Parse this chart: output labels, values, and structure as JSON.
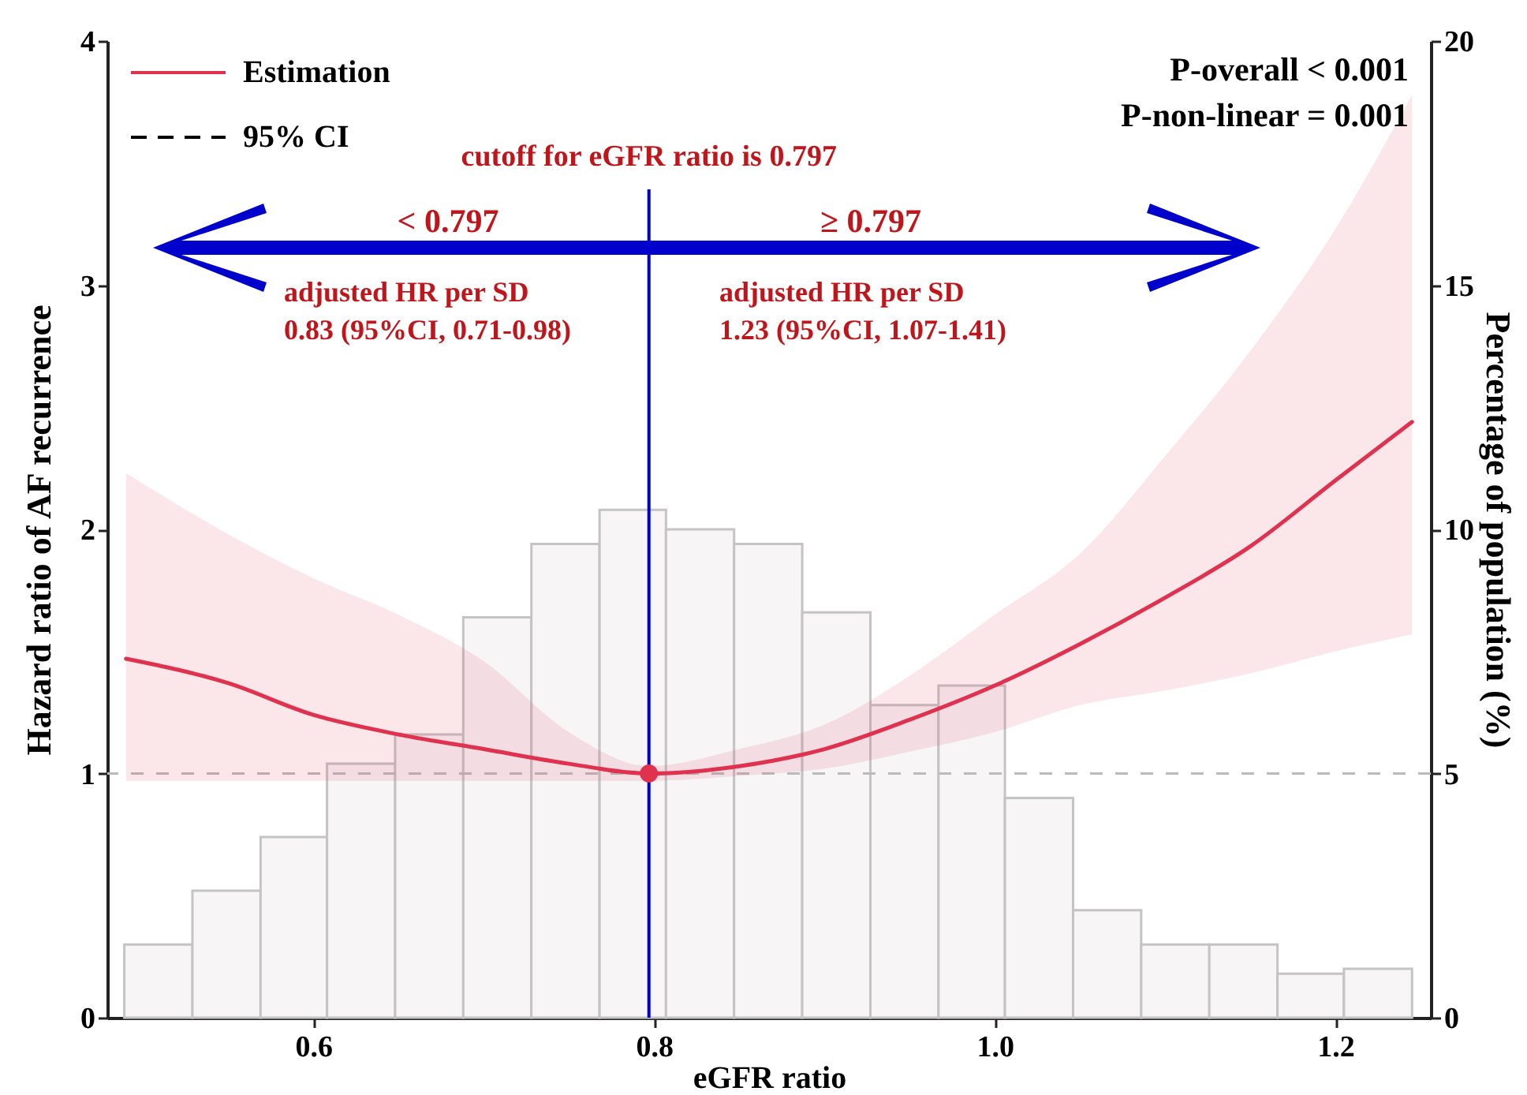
{
  "chart_data": {
    "type": "line",
    "xlabel": "eGFR ratio",
    "ylabel": "Hazard ratio of AF recurrence",
    "y2label": "Percentage of population (%)",
    "annotations": [
      "95% CI",
      "< 0.797",
      "≥ 0.797",
      "adjusted HR per SD\n0.83 (95%CI, 0.71-0.98)",
      "adjusted HR per SD\n1.23 (95%CI, 1.07-1.41)",
      "P-overall < 0.001",
      "P-non-linear = 0.001"
    ],
    "xlim": [
      0.479,
      1.256
    ],
    "xticks": [
      0.6,
      0.8,
      {
        "value": 1,
        "label": "1.0"
      },
      1.2
    ],
    "ylim": [
      0,
      4
    ],
    "yticks": [
      0,
      1,
      2,
      3,
      4
    ],
    "y2lim": [
      0,
      20
    ],
    "y2ticks": [
      0,
      5,
      10,
      15,
      20
    ],
    "legend": "top left",
    "grid": false,
    "ref_lines": [
      {
        "axis": "y",
        "value": 1,
        "color": "#bbbbbb",
        "line_style": "dashed"
      },
      {
        "axis": "x",
        "value": 0.797,
        "label": "cutoff for eGFR ratio is 0.797",
        "color": "#0000cc"
      }
    ],
    "series": [
      {
        "type": "histogram",
        "axis": "y2",
        "color": "#f7f5f6",
        "bins": [
          0.489,
          0.529,
          0.569,
          0.608,
          0.648,
          0.688,
          0.728,
          0.768,
          0.807,
          0.847,
          0.887,
          0.927,
          0.967,
          1.006,
          1.046,
          1.086,
          1.126,
          1.166,
          1.205,
          1.245
        ],
        "values": [
          1.5,
          2.6,
          3.7,
          5.2,
          5.8,
          8.2,
          9.7,
          10.4,
          10.0,
          9.7,
          8.3,
          6.4,
          6.8,
          4.5,
          2.2,
          1.5,
          1.5,
          0.9,
          1.0
        ]
      },
      {
        "name": "Estimation",
        "type": "line",
        "color": "#e0314f",
        "x": [
          0.49,
          0.55,
          0.6,
          0.65,
          0.7,
          0.75,
          0.797,
          0.85,
          0.9,
          0.95,
          1.0,
          1.05,
          1.1,
          1.15,
          1.2,
          1.245
        ],
        "values": [
          1.47,
          1.37,
          1.24,
          1.16,
          1.1,
          1.04,
          1.0,
          1.03,
          1.1,
          1.22,
          1.36,
          1.53,
          1.72,
          1.93,
          2.2,
          2.44
        ],
        "lower": [
          0.97,
          0.97,
          0.97,
          0.97,
          0.97,
          0.97,
          0.97,
          0.99,
          1.02,
          1.09,
          1.17,
          1.28,
          1.34,
          1.41,
          1.5,
          1.57
        ],
        "upper": [
          2.23,
          1.98,
          1.8,
          1.65,
          1.46,
          1.17,
          1.03,
          1.1,
          1.2,
          1.4,
          1.65,
          1.9,
          2.3,
          2.73,
          3.23,
          3.78
        ]
      },
      {
        "type": "scatter",
        "color": "#e0314f",
        "x": [
          0.797
        ],
        "values": [
          1.0
        ]
      }
    ]
  }
}
